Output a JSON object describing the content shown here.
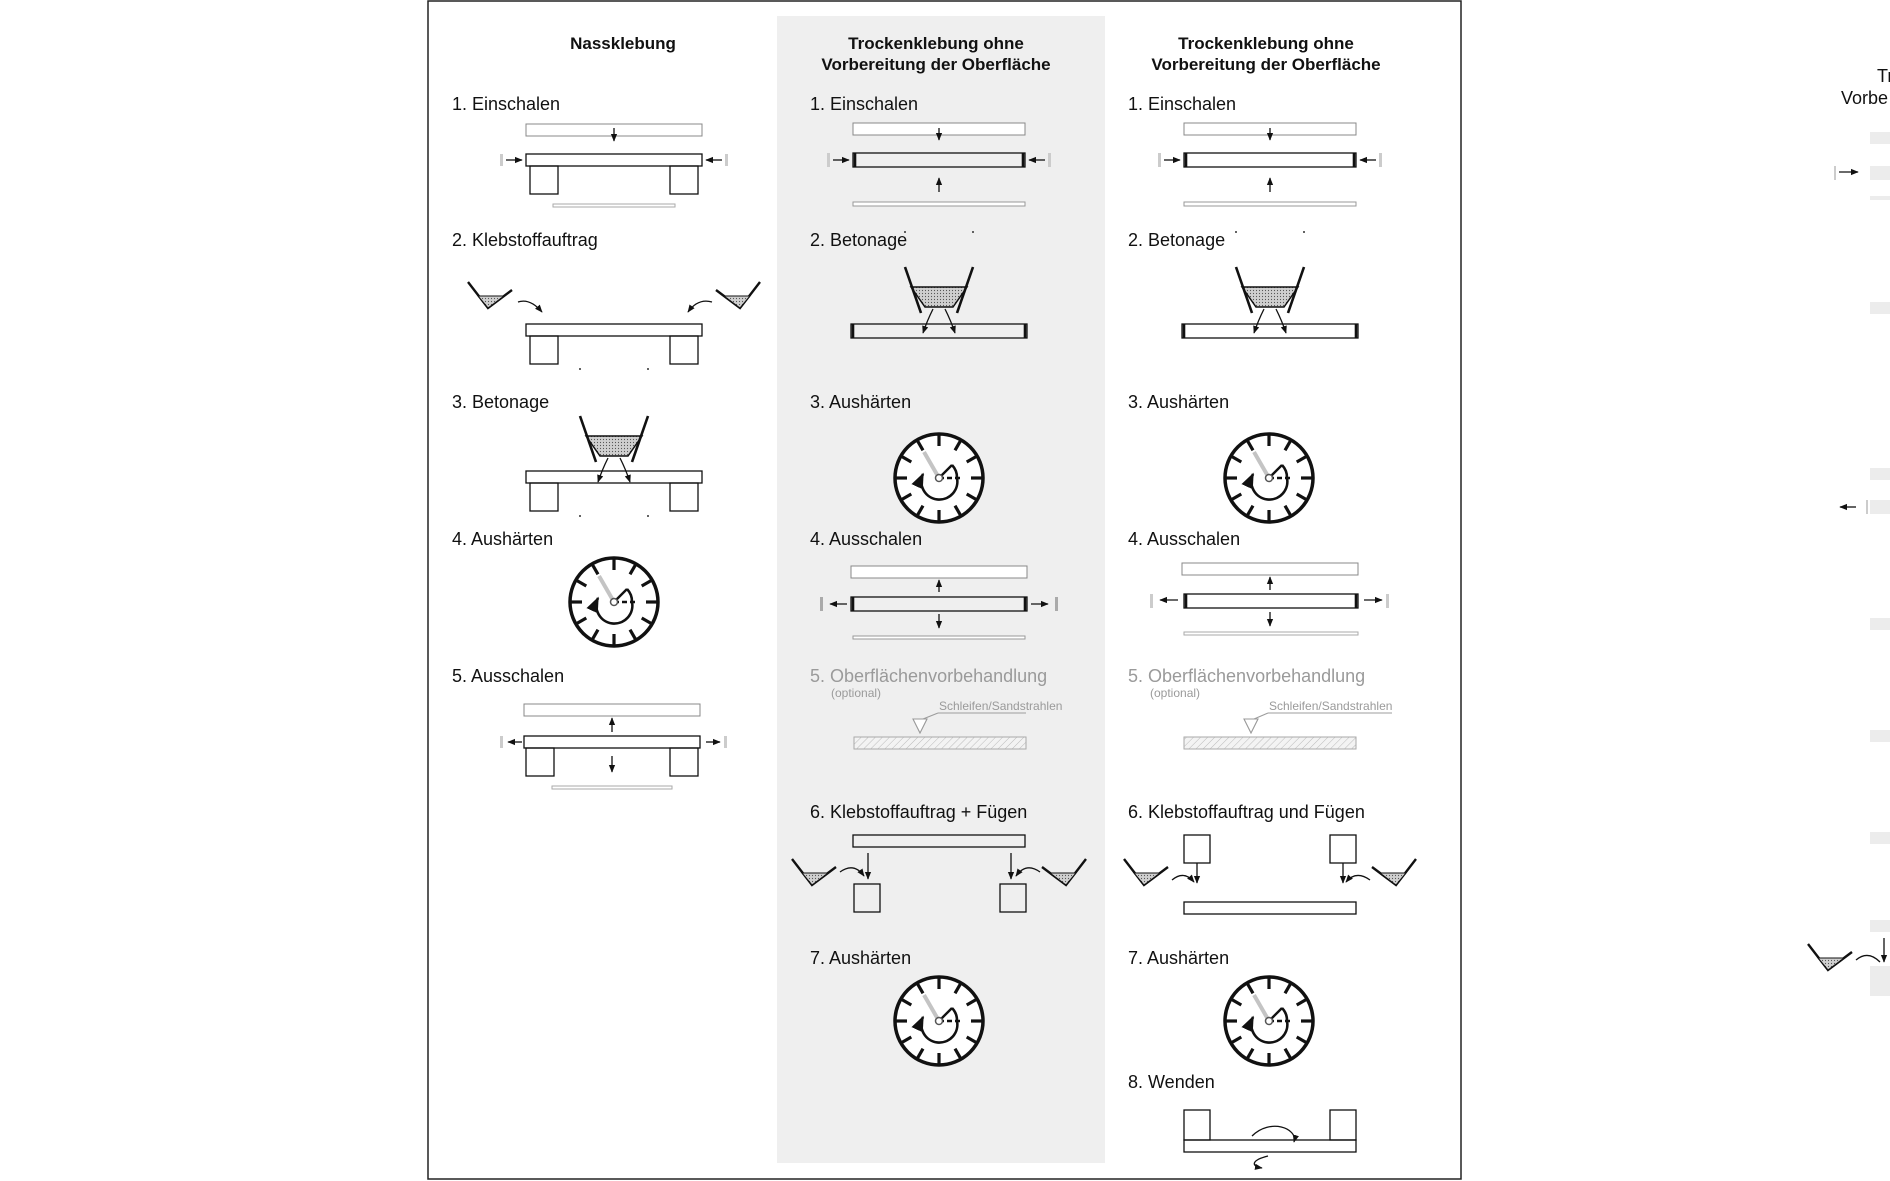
{
  "columns": [
    {
      "title": [
        "Nassklebung"
      ],
      "steps": [
        {
          "label": "1. Einschalen",
          "icon": "formwork-on-legs-icon"
        },
        {
          "label": "2. Klebstoffauftrag",
          "icon": "adhesive-buckets-icon"
        },
        {
          "label": "3. Betonage",
          "icon": "concrete-pour-icon"
        },
        {
          "label": "4. Aushärten",
          "icon": "clock-icon"
        },
        {
          "label": "5. Ausschalen",
          "icon": "demolding-icon"
        }
      ]
    },
    {
      "title": [
        "Trockenklebung ohne",
        "Vorbereitung der Oberfläche"
      ],
      "steps": [
        {
          "label": "1. Einschalen",
          "icon": "formwork-icon"
        },
        {
          "label": "2. Betonage",
          "icon": "concrete-pour-icon"
        },
        {
          "label": "3. Aushärten",
          "icon": "clock-icon"
        },
        {
          "label": "4. Ausschalen",
          "icon": "demolding-icon"
        },
        {
          "label": "5. Oberflächenvorbehandlung",
          "note": "(optional)",
          "annotation": "Schleifen/Sandstrahlen",
          "icon": "surface-treatment-icon",
          "muted": true
        },
        {
          "label": "6. Klebstoffauftrag + Fügen",
          "icon": "adhesive-joining-icon"
        },
        {
          "label": "7. Aushärten",
          "icon": "clock-icon"
        }
      ]
    },
    {
      "title": [
        "Trockenklebung ohne",
        "Vorbereitung der Oberfläche"
      ],
      "steps": [
        {
          "label": "1. Einschalen",
          "icon": "formwork-icon"
        },
        {
          "label": "2. Betonage",
          "icon": "concrete-pour-icon"
        },
        {
          "label": "3. Aushärten",
          "icon": "clock-icon"
        },
        {
          "label": "4. Ausschalen",
          "icon": "demolding-icon"
        },
        {
          "label": "5. Oberflächenvorbehandlung",
          "note": "(optional)",
          "annotation": "Schleifen/Sandstrahlen",
          "icon": "surface-treatment-icon",
          "muted": true
        },
        {
          "label": "6. Klebstoffauftrag und Fügen",
          "icon": "adhesive-joining-icon"
        },
        {
          "label": "7. Aushärten",
          "icon": "clock-icon"
        },
        {
          "label": "8. Wenden",
          "icon": "flip-icon"
        }
      ]
    }
  ],
  "cropped_right": {
    "title": [
      "Tr",
      "Vorbe"
    ]
  },
  "colors": {
    "highlight_column": "#efefef",
    "line": "#111111",
    "muted": "#9a9a9a"
  }
}
